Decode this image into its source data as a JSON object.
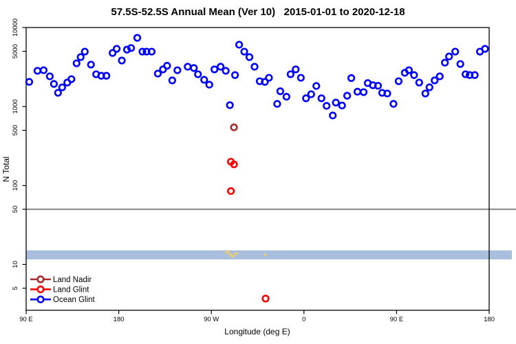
{
  "chart_data": {
    "type": "scatter",
    "title": "57.5S-52.5S Annual Mean (Ver 10)   2015-01-01 to 2020-12-18",
    "xlabel": "Longitude (deg E)",
    "ylabel": "N Total",
    "x_axis": {
      "note": "longitude unwrapped along axis, degrees east from 90E to 540 (=180)",
      "domain": [
        90,
        540
      ],
      "ticks": [
        90,
        180,
        270,
        360,
        450,
        540
      ],
      "tick_labels": [
        "90 E",
        "180",
        "90 W",
        "0",
        "90 E",
        "180"
      ]
    },
    "y_axis": {
      "scale": "log10",
      "domain_log10": [
        0.42,
        4.0
      ],
      "ticks": [
        10000,
        5000,
        1000,
        500,
        100,
        50,
        10,
        5
      ],
      "tick_labels": [
        "10000",
        "5000",
        "1000",
        "500",
        "100",
        "50",
        "10",
        "5"
      ]
    },
    "reference_line": {
      "y": 50,
      "color": "#8c8c8c"
    },
    "band": {
      "y_from": 11.6,
      "y_to": 15.1,
      "color": "#a8bedc"
    },
    "flag_marks": {
      "name": "land-flag-marks",
      "color": "#f2cf63",
      "points": [
        [
          284.6,
          14.2
        ],
        [
          286.6,
          14.5
        ],
        [
          288,
          13.5
        ],
        [
          289.3,
          13.0
        ],
        [
          291.3,
          12.7
        ],
        [
          292.7,
          13.5
        ],
        [
          294.7,
          13.9
        ],
        [
          322.7,
          13.3
        ]
      ]
    },
    "series": [
      {
        "name": "Ocean Glint",
        "color": "#0000ff",
        "points": [
          [
            93,
            2050
          ],
          [
            101,
            2830
          ],
          [
            107,
            2880
          ],
          [
            113,
            2410
          ],
          [
            117,
            1930
          ],
          [
            121,
            1490
          ],
          [
            125,
            1745
          ],
          [
            130,
            2010
          ],
          [
            134,
            2220
          ],
          [
            139,
            3520
          ],
          [
            143,
            4220
          ],
          [
            147,
            4950
          ],
          [
            153,
            3390
          ],
          [
            158,
            2560
          ],
          [
            163,
            2450
          ],
          [
            168,
            2450
          ],
          [
            174,
            4760
          ],
          [
            178,
            5370
          ],
          [
            183,
            3820
          ],
          [
            188,
            5250
          ],
          [
            192,
            5500
          ],
          [
            198,
            7400
          ],
          [
            203,
            4950
          ],
          [
            207,
            4950
          ],
          [
            212,
            4950
          ],
          [
            218,
            2610
          ],
          [
            223,
            2950
          ],
          [
            227,
            3280
          ],
          [
            232,
            2140
          ],
          [
            237,
            2880
          ],
          [
            247,
            3190
          ],
          [
            253,
            3070
          ],
          [
            257,
            2560
          ],
          [
            263,
            2180
          ],
          [
            268,
            1890
          ],
          [
            273,
            2950
          ],
          [
            279,
            3190
          ],
          [
            284,
            2830
          ],
          [
            288,
            1040
          ],
          [
            293,
            2500
          ],
          [
            297,
            6060
          ],
          [
            302,
            4950
          ],
          [
            307,
            4220
          ],
          [
            312,
            3190
          ],
          [
            317,
            2090
          ],
          [
            322,
            2050
          ],
          [
            326,
            2310
          ],
          [
            334,
            1080
          ],
          [
            337,
            1560
          ],
          [
            343,
            1330
          ],
          [
            347,
            2560
          ],
          [
            352,
            2950
          ],
          [
            357,
            2310
          ],
          [
            362,
            1270
          ],
          [
            367,
            1430
          ],
          [
            372,
            1820
          ],
          [
            377,
            1270
          ],
          [
            382,
            1020
          ],
          [
            388,
            770
          ],
          [
            391,
            1120
          ],
          [
            397,
            1030
          ],
          [
            402,
            1370
          ],
          [
            406,
            2290
          ],
          [
            412,
            1540
          ],
          [
            418,
            1520
          ],
          [
            422,
            1980
          ],
          [
            427,
            1860
          ],
          [
            432,
            1830
          ],
          [
            436,
            1490
          ],
          [
            441,
            1460
          ],
          [
            447,
            1080
          ],
          [
            452,
            2090
          ],
          [
            458,
            2670
          ],
          [
            462,
            2880
          ],
          [
            467,
            2500
          ],
          [
            472,
            2010
          ],
          [
            478,
            1460
          ],
          [
            482,
            1750
          ],
          [
            487,
            2140
          ],
          [
            492,
            2410
          ],
          [
            497,
            3590
          ],
          [
            501,
            4300
          ],
          [
            507,
            4950
          ],
          [
            512,
            3450
          ],
          [
            517,
            2560
          ],
          [
            521,
            2500
          ],
          [
            526,
            2500
          ],
          [
            531,
            4950
          ],
          [
            536,
            5370
          ]
        ]
      },
      {
        "name": "Land Nadir",
        "color": "#a52a2a",
        "points": [
          [
            292,
            545
          ]
        ]
      },
      {
        "name": "Land Glint",
        "color": "#ff0000",
        "points": [
          [
            289,
            200
          ],
          [
            292,
            185
          ],
          [
            289,
            85
          ],
          [
            322.7,
            3.7
          ]
        ]
      }
    ],
    "legend": {
      "position": "bottom-left",
      "items": [
        {
          "label": "Land Nadir",
          "color": "#a52a2a"
        },
        {
          "label": "Land Glint",
          "color": "#ff0000"
        },
        {
          "label": "Ocean Glint",
          "color": "#0000ff"
        }
      ]
    }
  }
}
